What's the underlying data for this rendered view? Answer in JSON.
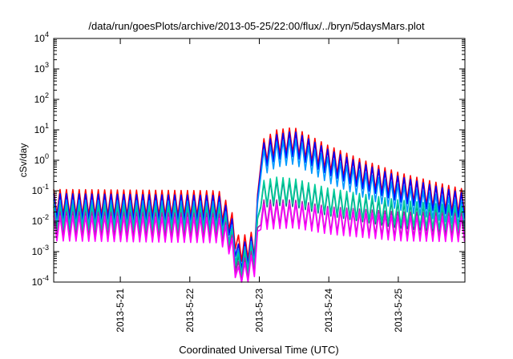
{
  "chart_data": {
    "type": "line",
    "title": "/data/run/goesPlots/archive/2013-05-25/22:00/flux/../bryn/5daysMars.plot",
    "xlabel": "Coordinated Universal Time (UTC)",
    "ylabel": "cSv/day",
    "yscale": "log",
    "ylim": [
      0.0001,
      10000
    ],
    "y_ticks": [
      {
        "exp": "-4",
        "value": 0.0001
      },
      {
        "exp": "-3",
        "value": 0.001
      },
      {
        "exp": "-2",
        "value": 0.01
      },
      {
        "exp": "-1",
        "value": 0.1
      },
      {
        "exp": "0",
        "value": 1
      },
      {
        "exp": "1",
        "value": 10
      },
      {
        "exp": "2",
        "value": 100
      },
      {
        "exp": "3",
        "value": 1000
      },
      {
        "exp": "4",
        "value": 10000
      }
    ],
    "y_tick_base": "10",
    "xlim": [
      "2013-05-20 01:00",
      "2013-05-25 23:00"
    ],
    "x_ticks": [
      "2013-5-21",
      "2013-5-22",
      "2013-5-23",
      "2013-5-24",
      "2013-5-25"
    ],
    "grid": false,
    "legend": "none",
    "oscillation_period_hours": 2.2,
    "trough_factor": 0.15,
    "series": [
      {
        "color": "#ff0000",
        "points": [
          [
            "2013-05-20 01:00",
            0.11
          ],
          [
            "2013-05-22 10:00",
            0.1
          ],
          [
            "2013-05-22 14:00",
            0.03
          ],
          [
            "2013-05-22 17:00",
            0.003
          ],
          [
            "2013-05-22 23:00",
            0.005
          ],
          [
            "2013-05-23 00:00",
            4
          ],
          [
            "2013-05-23 06:00",
            10
          ],
          [
            "2013-05-23 12:00",
            12
          ],
          [
            "2013-05-23 18:00",
            6
          ],
          [
            "2013-05-24 00:00",
            3
          ],
          [
            "2013-05-24 12:00",
            1
          ],
          [
            "2013-05-25 00:00",
            0.4
          ],
          [
            "2013-05-25 12:00",
            0.2
          ],
          [
            "2013-05-25 23:00",
            0.11
          ]
        ]
      },
      {
        "color": "#0000ff",
        "points": [
          [
            "2013-05-20 01:00",
            0.08
          ],
          [
            "2013-05-22 10:00",
            0.07
          ],
          [
            "2013-05-22 14:00",
            0.02
          ],
          [
            "2013-05-22 17:00",
            0.0015
          ],
          [
            "2013-05-22 23:00",
            0.004
          ],
          [
            "2013-05-23 00:00",
            3
          ],
          [
            "2013-05-23 06:00",
            7
          ],
          [
            "2013-05-23 12:00",
            9
          ],
          [
            "2013-05-23 18:00",
            4.5
          ],
          [
            "2013-05-24 00:00",
            2.2
          ],
          [
            "2013-05-24 12:00",
            0.75
          ],
          [
            "2013-05-25 00:00",
            0.3
          ],
          [
            "2013-05-25 12:00",
            0.15
          ],
          [
            "2013-05-25 23:00",
            0.08
          ]
        ]
      },
      {
        "color": "#0099ff",
        "points": [
          [
            "2013-05-20 01:00",
            0.05
          ],
          [
            "2013-05-22 10:00",
            0.045
          ],
          [
            "2013-05-22 14:00",
            0.012
          ],
          [
            "2013-05-22 17:00",
            0.001
          ],
          [
            "2013-05-22 23:00",
            0.003
          ],
          [
            "2013-05-23 00:00",
            1.8
          ],
          [
            "2013-05-23 06:00",
            4
          ],
          [
            "2013-05-23 12:00",
            5
          ],
          [
            "2013-05-23 18:00",
            2.5
          ],
          [
            "2013-05-24 00:00",
            1.2
          ],
          [
            "2013-05-24 12:00",
            0.4
          ],
          [
            "2013-05-25 00:00",
            0.16
          ],
          [
            "2013-05-25 12:00",
            0.08
          ],
          [
            "2013-05-25 23:00",
            0.045
          ]
        ]
      },
      {
        "color": "#008080",
        "points": [
          [
            "2013-05-20 01:00",
            0.03
          ],
          [
            "2013-05-22 10:00",
            0.025
          ],
          [
            "2013-05-22 14:00",
            0.008
          ],
          [
            "2013-05-22 17:00",
            0.0006
          ],
          [
            "2013-05-22 23:00",
            0.002
          ],
          [
            "2013-05-23 00:00",
            0.18
          ],
          [
            "2013-05-23 06:00",
            0.22
          ],
          [
            "2013-05-23 12:00",
            0.2
          ],
          [
            "2013-05-24 00:00",
            0.1
          ],
          [
            "2013-05-25 00:00",
            0.04
          ],
          [
            "2013-05-25 23:00",
            0.025
          ]
        ]
      },
      {
        "color": "#00cc99",
        "points": [
          [
            "2013-05-20 01:00",
            0.035
          ],
          [
            "2013-05-22 10:00",
            0.03
          ],
          [
            "2013-05-22 14:00",
            0.009
          ],
          [
            "2013-05-22 17:00",
            0.0008
          ],
          [
            "2013-05-22 23:00",
            0.002
          ],
          [
            "2013-05-23 00:00",
            0.2
          ],
          [
            "2013-05-23 06:00",
            0.28
          ],
          [
            "2013-05-23 12:00",
            0.25
          ],
          [
            "2013-05-24 00:00",
            0.12
          ],
          [
            "2013-05-25 00:00",
            0.05
          ],
          [
            "2013-05-25 23:00",
            0.03
          ]
        ]
      },
      {
        "color": "#aa22aa",
        "points": [
          [
            "2013-05-20 01:00",
            0.02
          ],
          [
            "2013-05-22 10:00",
            0.018
          ],
          [
            "2013-05-22 14:00",
            0.006
          ],
          [
            "2013-05-22 17:00",
            0.0004
          ],
          [
            "2013-05-22 23:00",
            0.0015
          ],
          [
            "2013-05-23 00:00",
            0.05
          ],
          [
            "2013-05-23 12:00",
            0.05
          ],
          [
            "2013-05-24 00:00",
            0.03
          ],
          [
            "2013-05-25 00:00",
            0.02
          ],
          [
            "2013-05-25 23:00",
            0.018
          ]
        ]
      },
      {
        "color": "#ff00ff",
        "points": [
          [
            "2013-05-20 01:00",
            0.015
          ],
          [
            "2013-05-22 10:00",
            0.013
          ],
          [
            "2013-05-22 14:00",
            0.005
          ],
          [
            "2013-05-22 17:00",
            0.00026
          ],
          [
            "2013-05-22 23:00",
            0.0012
          ],
          [
            "2013-05-23 00:00",
            0.035
          ],
          [
            "2013-05-23 12:00",
            0.04
          ],
          [
            "2013-05-24 00:00",
            0.025
          ],
          [
            "2013-05-25 00:00",
            0.015
          ],
          [
            "2013-05-25 23:00",
            0.014
          ]
        ]
      }
    ]
  }
}
